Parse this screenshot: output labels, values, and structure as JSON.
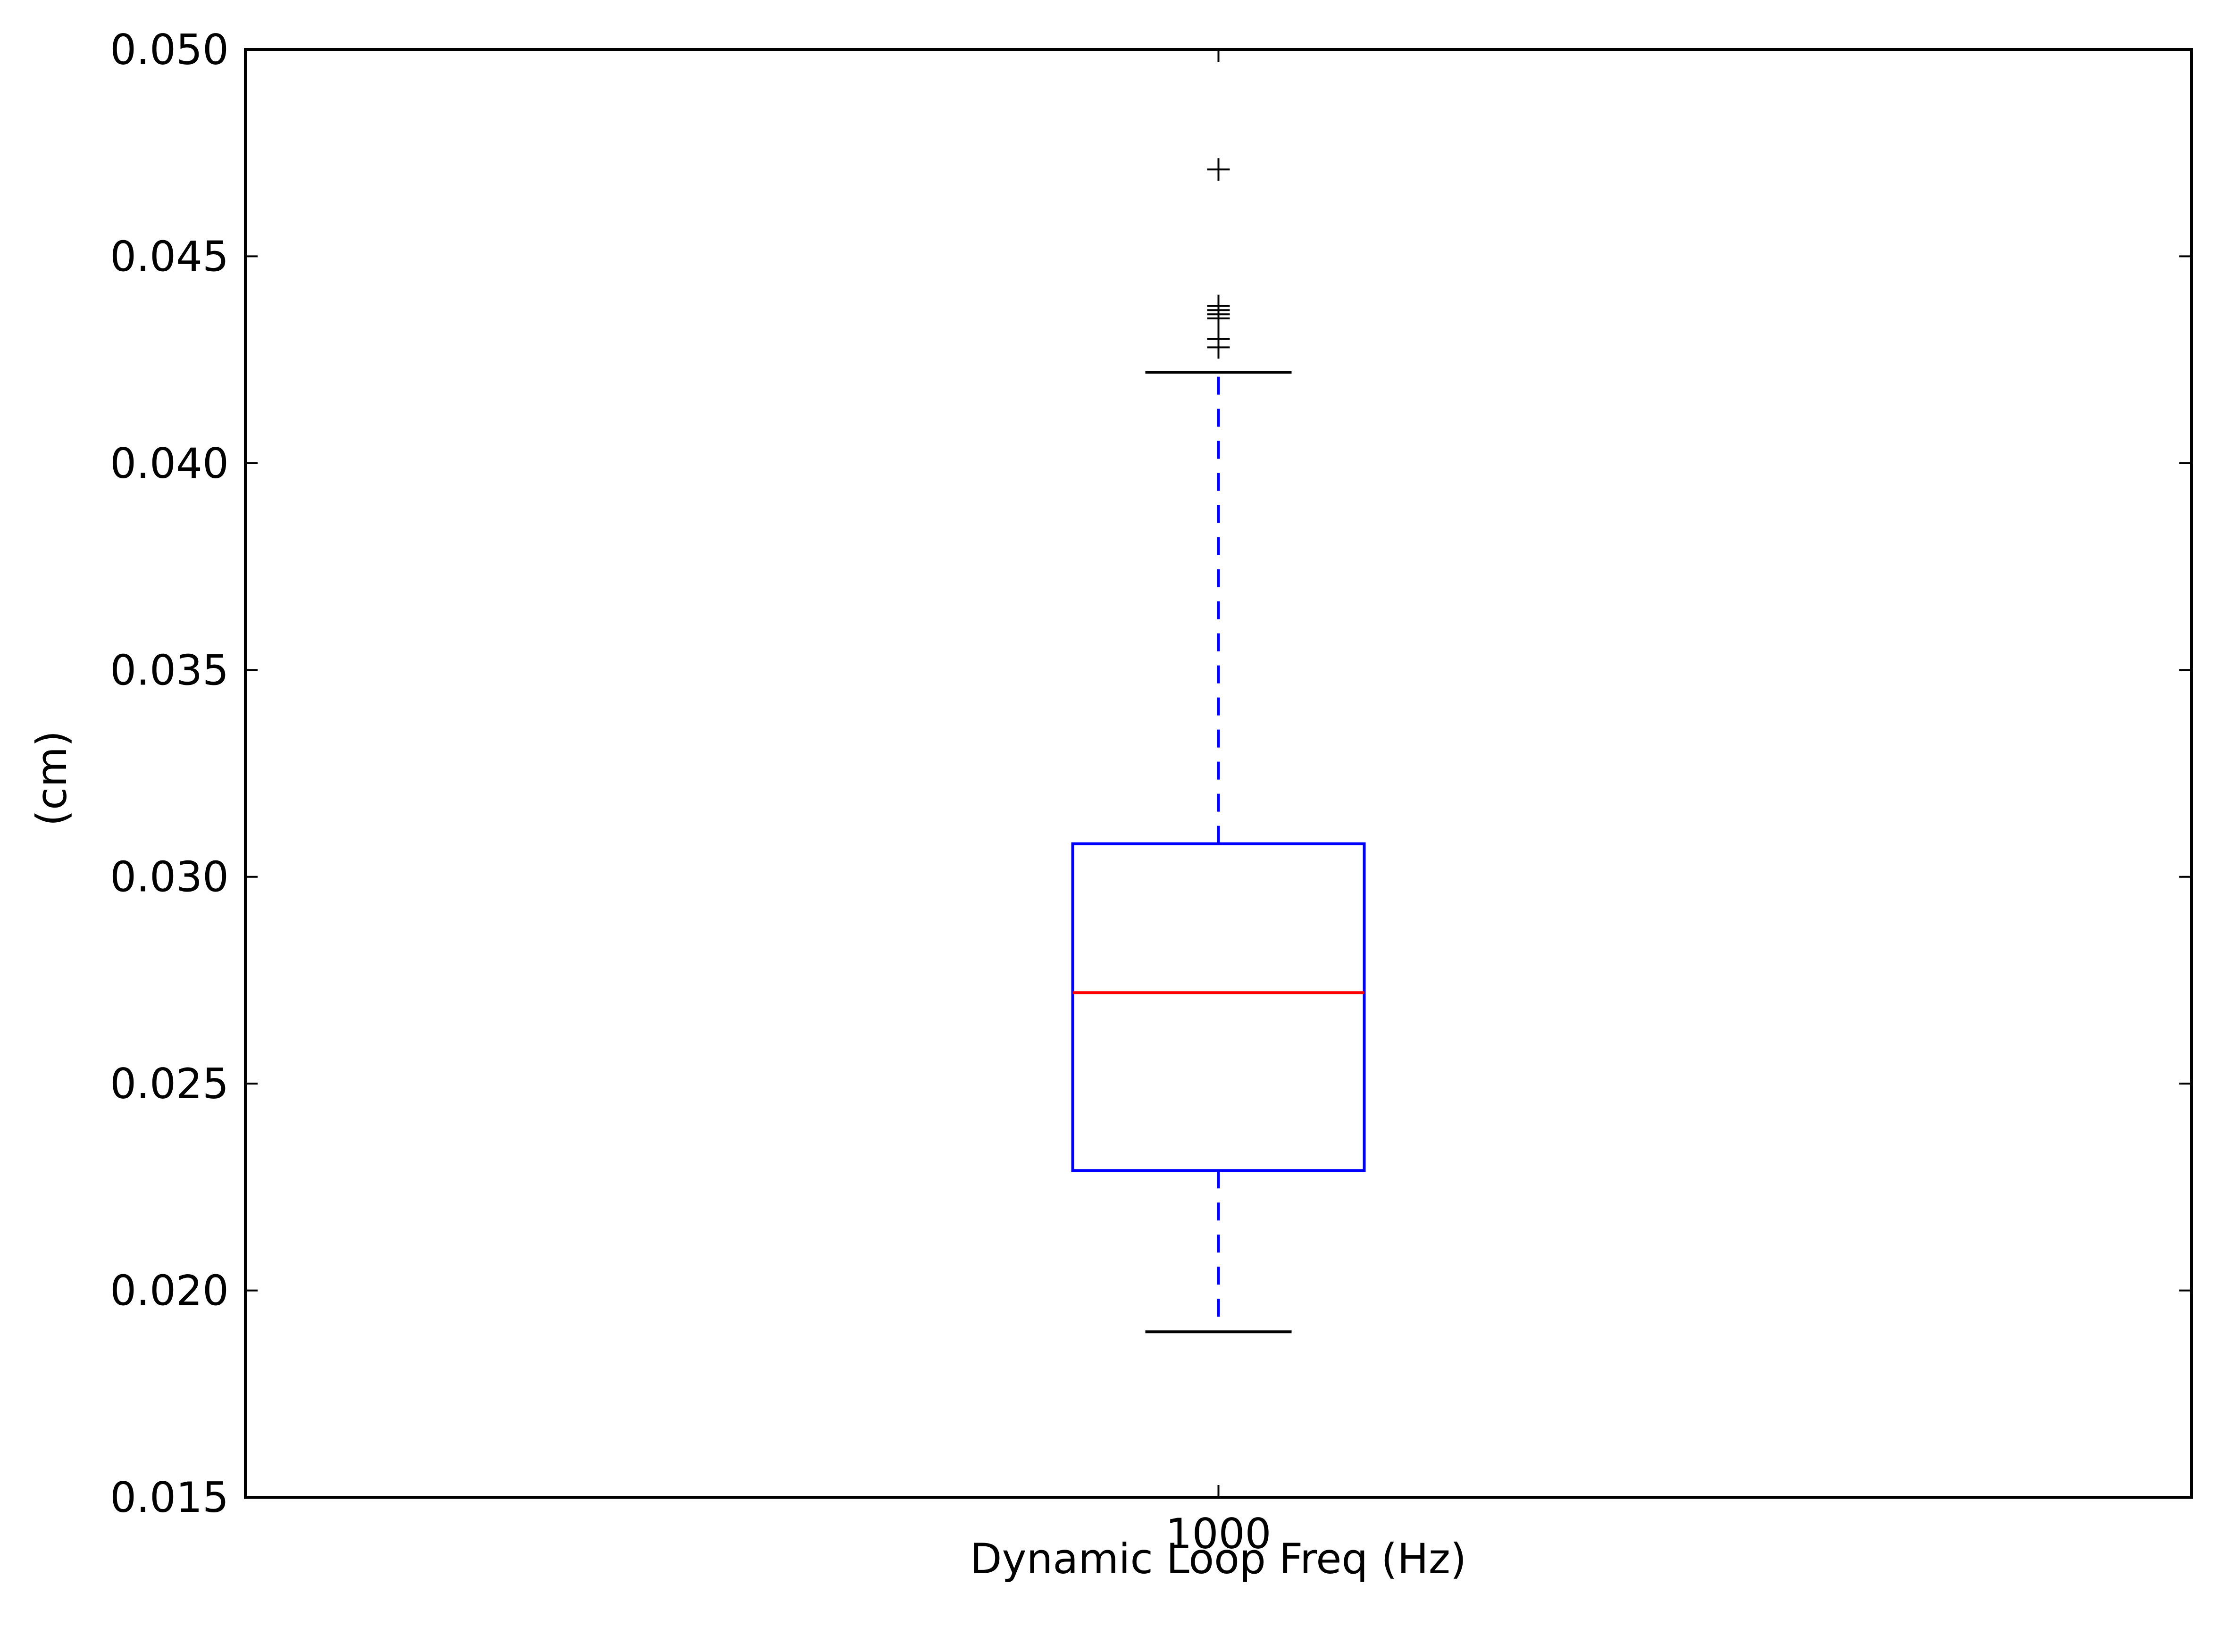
{
  "chart_data": {
    "type": "box",
    "title": "",
    "xlabel": "Dynamic Loop Freq (Hz)",
    "ylabel": "(cm)",
    "ylim": [
      0.015,
      0.05
    ],
    "yticks": [
      "0.015",
      "0.020",
      "0.025",
      "0.030",
      "0.035",
      "0.040",
      "0.045",
      "0.050"
    ],
    "grid": false,
    "legend": "none",
    "categories": [
      "1000"
    ],
    "boxes": [
      {
        "category": "1000",
        "whisker_low": 0.019,
        "q1": 0.0229,
        "median": 0.0272,
        "q3": 0.0308,
        "whisker_high": 0.0422,
        "outliers": [
          0.0428,
          0.043,
          0.0435,
          0.0436,
          0.0437,
          0.0438,
          0.0471
        ]
      }
    ],
    "colors": {
      "box": "#0000ff",
      "whisker": "#0000ff",
      "median": "#ff0000",
      "caps": "#000000",
      "outliers": "#000000",
      "axes": "#000000"
    }
  }
}
